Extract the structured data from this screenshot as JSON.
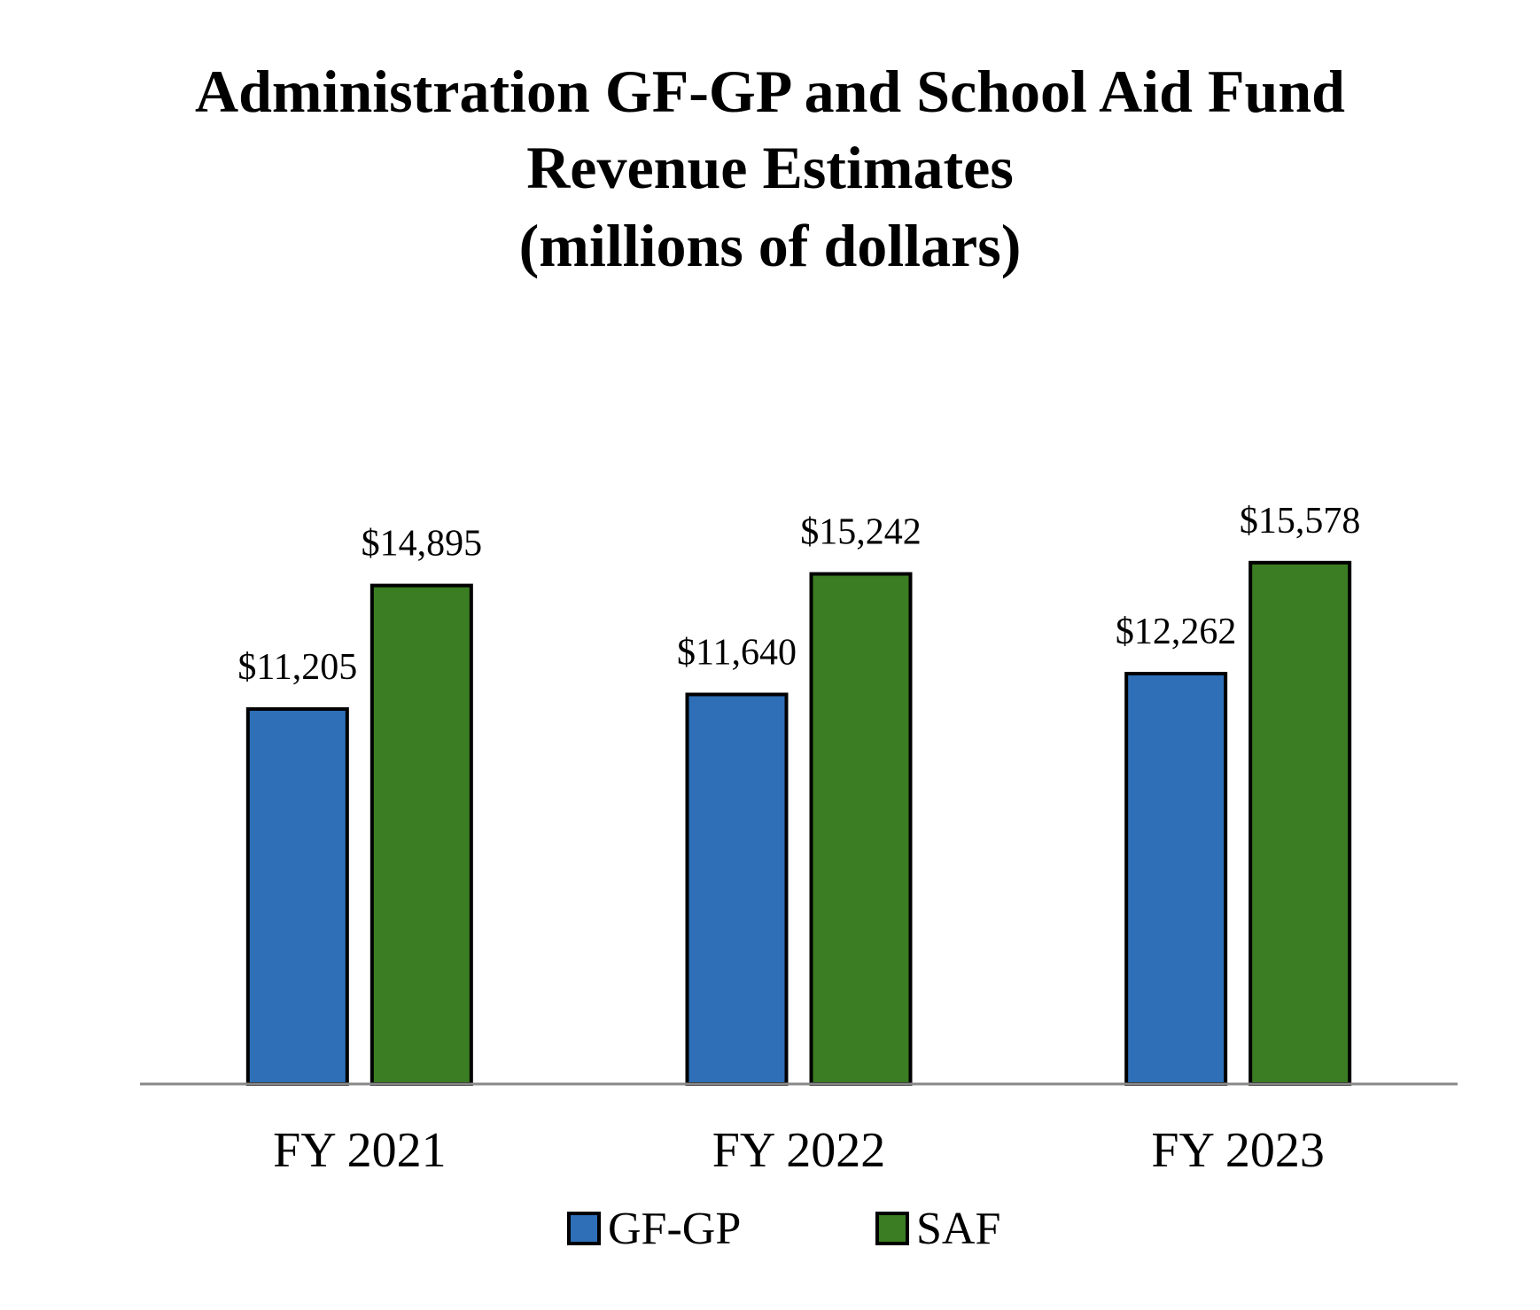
{
  "chart_data": {
    "type": "bar",
    "title": "Administration GF-GP and School Aid Fund Revenue Estimates (millions of dollars)",
    "title_lines": [
      "Administration GF-GP and School Aid Fund",
      "Revenue Estimates",
      "(millions of dollars)"
    ],
    "categories": [
      "FY 2021",
      "FY 2022",
      "FY 2023"
    ],
    "series": [
      {
        "name": "GF-GP",
        "color": "#2E6FB7",
        "values": [
          11205,
          11640,
          12262
        ],
        "labels": [
          "$11,205",
          "$11,640",
          "$12,262"
        ]
      },
      {
        "name": "SAF",
        "color": "#3A7D22",
        "values": [
          14895,
          15242,
          15578
        ],
        "labels": [
          "$14,895",
          "$15,242",
          "$15,578"
        ]
      }
    ],
    "xlabel": "",
    "ylabel": "",
    "ylim": [
      0,
      16500
    ],
    "grid": false,
    "y_axis_visible": false,
    "legend_position": "bottom",
    "bar_border_color": "#000000",
    "baseline_color": "#888888"
  }
}
